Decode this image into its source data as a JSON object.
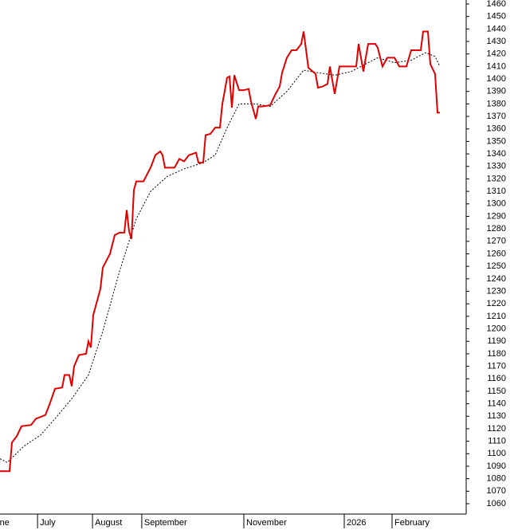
{
  "chart_data": {
    "type": "line",
    "xlim": [
      0,
      195
    ],
    "xticks": [
      {
        "value": -5,
        "label": "June"
      },
      {
        "value": 15.7,
        "label": "July"
      },
      {
        "value": 38.7,
        "label": "August"
      },
      {
        "value": 59.3,
        "label": "September"
      },
      {
        "value": 102,
        "label": "November"
      },
      {
        "value": 144,
        "label": "2026"
      },
      {
        "value": 164,
        "label": "February"
      }
    ],
    "ylim": [
      1060,
      1460
    ],
    "yticks": [
      1060,
      1070,
      1080,
      1090,
      1100,
      1110,
      1120,
      1130,
      1140,
      1150,
      1160,
      1170,
      1180,
      1190,
      1200,
      1210,
      1220,
      1230,
      1240,
      1250,
      1260,
      1270,
      1280,
      1290,
      1300,
      1310,
      1320,
      1330,
      1340,
      1350,
      1360,
      1370,
      1380,
      1390,
      1400,
      1410,
      1420,
      1430,
      1440,
      1450,
      1460
    ],
    "series": [
      {
        "color": "#e00000",
        "style": "solid",
        "x": [
          0,
          2,
          4,
          5,
          7,
          9,
          13,
          15,
          19,
          21,
          23,
          26,
          27,
          29,
          30,
          31,
          33,
          36,
          37,
          38,
          39,
          42,
          43,
          46,
          48,
          50,
          52,
          53,
          54,
          55,
          56,
          57,
          60,
          63,
          65,
          67,
          68,
          69,
          73,
          75,
          77,
          79,
          82,
          83,
          85,
          86,
          88,
          90,
          92,
          93,
          95,
          96,
          97,
          98,
          100,
          102,
          104,
          105,
          107,
          108,
          110,
          113,
          115,
          117,
          118,
          120,
          122,
          124,
          126,
          127,
          129,
          132,
          133,
          135,
          137,
          138,
          140,
          142,
          145,
          149,
          150,
          152,
          153,
          154,
          157,
          158,
          160,
          162,
          165,
          167,
          170,
          172,
          176,
          177,
          179,
          180,
          182,
          183,
          184
        ],
        "values": [
          1086,
          1086,
          1086,
          1109,
          1114,
          1122,
          1123,
          1128,
          1131,
          1141,
          1152,
          1153,
          1163,
          1163,
          1154,
          1170,
          1179,
          1180,
          1190,
          1185,
          1211,
          1232,
          1249,
          1260,
          1275,
          1277,
          1277,
          1295,
          1278,
          1272,
          1311,
          1318,
          1318,
          1329,
          1339,
          1342,
          1339,
          1329,
          1329,
          1336,
          1334,
          1339,
          1341,
          1333,
          1333,
          1355,
          1356,
          1361,
          1361,
          1380,
          1401,
          1402,
          1377,
          1403,
          1391,
          1391,
          1392,
          1382,
          1368,
          1378,
          1378,
          1379,
          1387,
          1394,
          1405,
          1417,
          1423,
          1423,
          1428,
          1438,
          1409,
          1404,
          1393,
          1394,
          1396,
          1410,
          1388,
          1410,
          1410,
          1410,
          1428,
          1406,
          1417,
          1428,
          1428,
          1425,
          1410,
          1417,
          1417,
          1410,
          1410,
          1423,
          1423,
          1438,
          1438,
          1412,
          1404,
          1373,
          1373
        ]
      },
      {
        "color": "#000000",
        "style": "dotted",
        "x": [
          0,
          3,
          10,
          17,
          23,
          30,
          37,
          43,
          50,
          57,
          63,
          70,
          77,
          85,
          90,
          95,
          100,
          107,
          113,
          120,
          127,
          133,
          140,
          147,
          153,
          158,
          165,
          172,
          178,
          182,
          184
        ],
        "values": [
          1096,
          1093,
          1106,
          1115,
          1128,
          1144,
          1163,
          1198,
          1246,
          1288,
          1310,
          1322,
          1328,
          1333,
          1339,
          1361,
          1380,
          1380,
          1378,
          1390,
          1407,
          1405,
          1403,
          1406,
          1412,
          1417,
          1413,
          1415,
          1421,
          1418,
          1410
        ]
      }
    ]
  }
}
